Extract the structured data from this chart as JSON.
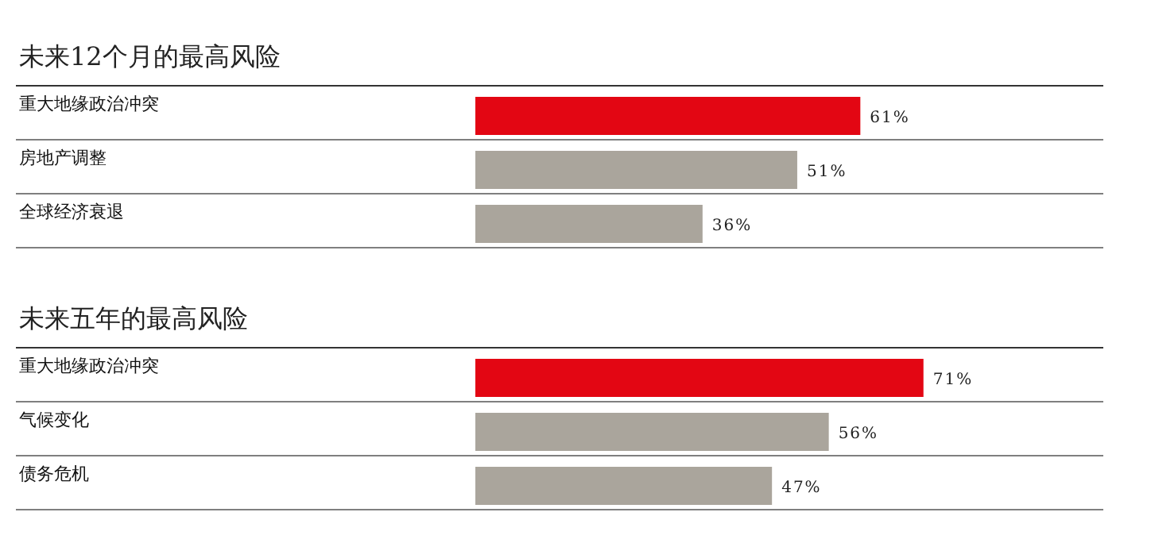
{
  "chart_data": [
    {
      "type": "bar",
      "orientation": "horizontal",
      "title": "未来12个月的最高风险",
      "categories": [
        "重大地缘政治冲突",
        "房地产调整",
        "全球经济衰退"
      ],
      "values": [
        61,
        51,
        36
      ],
      "colors": [
        "#e30613",
        "#aaa59c",
        "#aaa59c"
      ],
      "value_labels": [
        "61%",
        "51%",
        "36%"
      ],
      "xlim": [
        0,
        100
      ]
    },
    {
      "type": "bar",
      "orientation": "horizontal",
      "title": "未来五年的最高风险",
      "categories": [
        "重大地缘政治冲突",
        "气候变化",
        "债务危机"
      ],
      "values": [
        71,
        56,
        47
      ],
      "colors": [
        "#e30613",
        "#aaa59c",
        "#aaa59c"
      ],
      "value_labels": [
        "71%",
        "56%",
        "47%"
      ],
      "xlim": [
        0,
        100
      ]
    }
  ]
}
